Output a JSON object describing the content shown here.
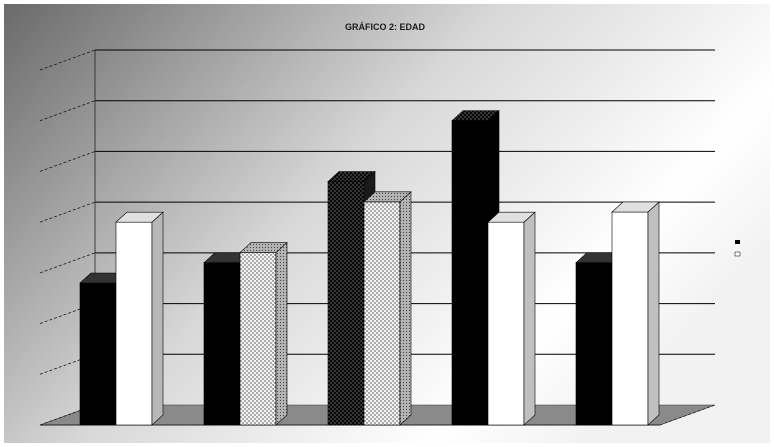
{
  "chart_data": {
    "type": "bar",
    "title": "GRÁFICO 2: EDAD",
    "categories": [
      "",
      "",
      "",
      "",
      ""
    ],
    "series": [
      {
        "name": "",
        "values": [
          2.8,
          3.2,
          4.8,
          6.0,
          3.2
        ],
        "color": "#000000"
      },
      {
        "name": "",
        "values": [
          4.0,
          3.4,
          4.4,
          4.0,
          4.2
        ],
        "color": "#ffffff"
      }
    ],
    "yticks": [
      "",
      "",
      "",
      "",
      "",
      "",
      "",
      ""
    ],
    "ylim": [
      0,
      7
    ],
    "grid": true,
    "legend_position": "right",
    "colors": {
      "background_dark": "#6e6e6e",
      "background_light": "#ffffff",
      "floor": "#8a8a8a",
      "gridline": "#000000",
      "bar_dark": "#000000",
      "bar_light": "#ffffff"
    }
  }
}
